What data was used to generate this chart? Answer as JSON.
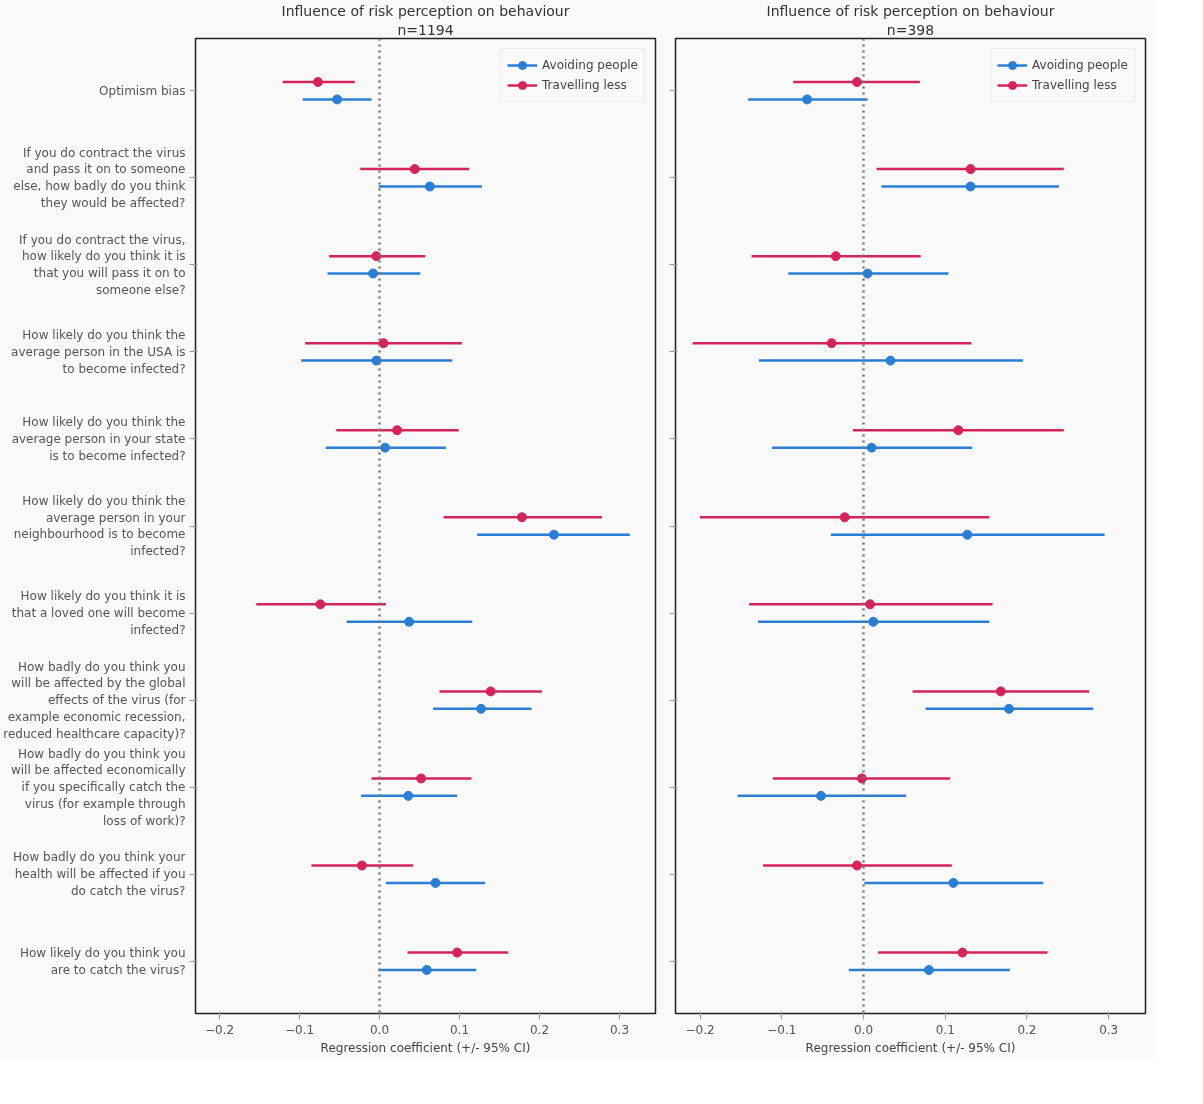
{
  "chart_data": [
    {
      "type": "scatter",
      "orientation": "horizontal",
      "title": "Influence of risk perception on behaviour",
      "subtitle": "n=1194",
      "xlabel": "Regression coefficient (+/- 95% CI)",
      "categories": [
        "Optimism bias",
        "If you do contract the virus\nand pass it on to someone\nelse, how badly do you think\nthey would be affected?",
        "If you do contract the virus,\nhow likely do you think it is\nthat you will pass it on to\nsomeone else?",
        "How likely do you think the\naverage person in the USA is\nto become infected?",
        "How likely do you think the\naverage person in your state\nis to become infected?",
        "How likely do you think the\naverage person in your\nneighbourhood is to become\ninfected?",
        "How likely do you think it is\nthat a loved one will become\ninfected?",
        "How badly do you think you\nwill be affected by the global\neffects of the virus (for\nexample economic recession,\nreduced healthcare capacity)?",
        "How badly do you think you\nwill be affected economically\nif you specifically catch the\nvirus (for example through\nloss of work)?",
        "How badly do you think your\nhealth will be affected if you\ndo catch the virus?",
        "How likely do you think you\nare to catch the virus?"
      ],
      "series": [
        {
          "name": "Avoiding people",
          "color": "#2a7fd4",
          "values": [
            -0.053,
            0.063,
            -0.008,
            -0.004,
            0.007,
            0.218,
            0.037,
            0.127,
            0.036,
            0.07,
            0.059
          ],
          "errors": [
            [
              -0.096,
              -0.01
            ],
            [
              -0.001,
              0.128
            ],
            [
              -0.065,
              0.051
            ],
            [
              -0.098,
              0.091
            ],
            [
              -0.067,
              0.083
            ],
            [
              0.122,
              0.313
            ],
            [
              -0.041,
              0.116
            ],
            [
              0.067,
              0.19
            ],
            [
              -0.023,
              0.097
            ],
            [
              0.008,
              0.132
            ],
            [
              -0.001,
              0.121
            ]
          ]
        },
        {
          "name": "Travelling less",
          "color": "#d4245a",
          "values": [
            -0.077,
            0.044,
            -0.004,
            0.005,
            0.022,
            0.178,
            -0.074,
            0.139,
            0.052,
            -0.022,
            0.097
          ],
          "errors": [
            [
              -0.121,
              -0.031
            ],
            [
              -0.024,
              0.112
            ],
            [
              -0.063,
              0.057
            ],
            [
              -0.093,
              0.103
            ],
            [
              -0.054,
              0.099
            ],
            [
              0.08,
              0.278
            ],
            [
              -0.154,
              0.008
            ],
            [
              0.075,
              0.203
            ],
            [
              -0.01,
              0.115
            ],
            [
              -0.085,
              0.042
            ],
            [
              0.035,
              0.161
            ]
          ]
        }
      ],
      "xlim": [
        -0.23,
        0.345
      ],
      "xticks": [
        {
          "value": -0.2,
          "label": "−0.2"
        },
        {
          "value": -0.1,
          "label": "−0.1"
        },
        {
          "value": 0,
          "label": "0.0"
        },
        0.1,
        0.2,
        0.3
      ],
      "ref_lines": [
        {
          "axis": "x",
          "value": 0,
          "color": "#777777",
          "line_style": "dotted"
        }
      ],
      "grid": false,
      "legend": "top right",
      "marker": "circle"
    },
    {
      "type": "scatter",
      "orientation": "horizontal",
      "title": "Influence of risk perception on behaviour",
      "subtitle": "n=398",
      "xlabel": "Regression coefficient (+/- 95% CI)",
      "categories": [
        null,
        null,
        null,
        null,
        null,
        null,
        null,
        null,
        null,
        null,
        null
      ],
      "series": [
        {
          "name": "Avoiding people",
          "color": "#2a7fd4",
          "values": [
            -0.069,
            0.131,
            0.005,
            0.033,
            0.01,
            0.127,
            0.012,
            0.178,
            -0.052,
            0.11,
            0.08
          ],
          "errors": [
            [
              -0.141,
              0.005
            ],
            [
              0.022,
              0.239
            ],
            [
              -0.092,
              0.104
            ],
            [
              -0.128,
              0.195
            ],
            [
              -0.112,
              0.133
            ],
            [
              -0.04,
              0.295
            ],
            [
              -0.129,
              0.154
            ],
            [
              0.076,
              0.281
            ],
            [
              -0.154,
              0.052
            ],
            [
              0.001,
              0.22
            ],
            [
              -0.018,
              0.179
            ]
          ]
        },
        {
          "name": "Travelling less",
          "color": "#d4245a",
          "values": [
            -0.008,
            0.131,
            -0.034,
            -0.039,
            0.116,
            -0.023,
            0.008,
            0.168,
            -0.002,
            -0.008,
            0.121
          ],
          "errors": [
            [
              -0.086,
              0.069
            ],
            [
              0.016,
              0.245
            ],
            [
              -0.137,
              0.07
            ],
            [
              -0.209,
              0.132
            ],
            [
              -0.013,
              0.245
            ],
            [
              -0.2,
              0.154
            ],
            [
              -0.14,
              0.158
            ],
            [
              0.06,
              0.276
            ],
            [
              -0.111,
              0.106
            ],
            [
              -0.123,
              0.108
            ],
            [
              0.018,
              0.225
            ]
          ]
        }
      ],
      "xlim": [
        -0.23,
        0.345
      ],
      "xticks": [
        {
          "value": -0.2,
          "label": "−0.2"
        },
        {
          "value": -0.1,
          "label": "−0.1"
        },
        {
          "value": 0,
          "label": "0.0"
        },
        0.1,
        0.2,
        0.3
      ],
      "ref_lines": [
        {
          "axis": "x",
          "value": 0,
          "color": "#777777",
          "line_style": "dotted"
        }
      ],
      "grid": false,
      "legend": "top right",
      "marker": "circle",
      "tick_labels": "x"
    }
  ]
}
